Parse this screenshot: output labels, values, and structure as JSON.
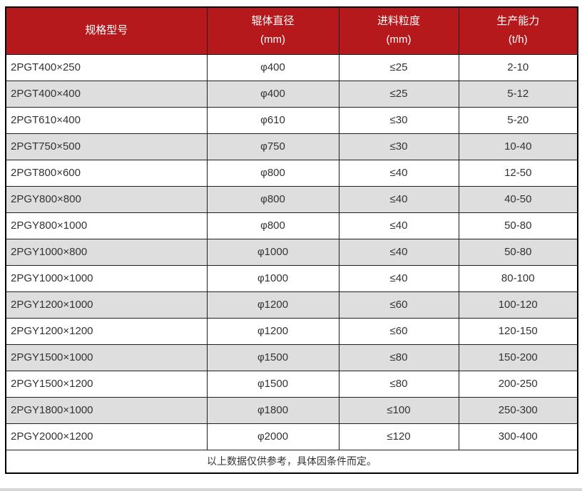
{
  "page": {
    "background": "#ffffff",
    "bottom_strip_color": "#d6d6d6"
  },
  "table": {
    "columns": [
      {
        "label": "规格型号",
        "unit": ""
      },
      {
        "label": "辊体直径",
        "unit": "(mm)"
      },
      {
        "label": "进料粒度",
        "unit": "(mm)"
      },
      {
        "label": "生产能力",
        "unit": "(t/h)"
      }
    ],
    "rows": [
      {
        "model": "2PGT400×250",
        "diameter": "φ400",
        "feed_size": "≤25",
        "capacity": "2-10"
      },
      {
        "model": "2PGT400×400",
        "diameter": "φ400",
        "feed_size": "≤25",
        "capacity": "5-12"
      },
      {
        "model": "2PGT610×400",
        "diameter": "φ610",
        "feed_size": "≤30",
        "capacity": "5-20"
      },
      {
        "model": "2PGT750×500",
        "diameter": "φ750",
        "feed_size": "≤30",
        "capacity": "10-40"
      },
      {
        "model": "2PGT800×600",
        "diameter": "φ800",
        "feed_size": "≤40",
        "capacity": "12-50"
      },
      {
        "model": "2PGY800×800",
        "diameter": "φ800",
        "feed_size": "≤40",
        "capacity": "40-50"
      },
      {
        "model": "2PGY800×1000",
        "diameter": "φ800",
        "feed_size": "≤40",
        "capacity": "50-80"
      },
      {
        "model": "2PGY1000×800",
        "diameter": "φ1000",
        "feed_size": "≤40",
        "capacity": "50-80"
      },
      {
        "model": "2PGY1000×1000",
        "diameter": "φ1000",
        "feed_size": "≤40",
        "capacity": "80-100"
      },
      {
        "model": "2PGY1200×1000",
        "diameter": "φ1200",
        "feed_size": "≤60",
        "capacity": "100-120"
      },
      {
        "model": "2PGY1200×1200",
        "diameter": "φ1200",
        "feed_size": "≤60",
        "capacity": "120-150"
      },
      {
        "model": "2PGY1500×1000",
        "diameter": "φ1500",
        "feed_size": "≤80",
        "capacity": "150-200"
      },
      {
        "model": "2PGY1500×1200",
        "diameter": "φ1500",
        "feed_size": "≤80",
        "capacity": "200-250"
      },
      {
        "model": "2PGY1800×1000",
        "diameter": "φ1800",
        "feed_size": "≤100",
        "capacity": "250-300"
      },
      {
        "model": "2PGY2000×1200",
        "diameter": "φ2000",
        "feed_size": "≤120",
        "capacity": "300-400"
      }
    ],
    "footer_note": "以上数据仅供参考，具体因条件而定。",
    "colors": {
      "header_bg": "#b5191c",
      "header_text": "#ffffff",
      "row_bg": "#ffffff",
      "row_alt_bg": "#dedede",
      "border": "#1f1f1f",
      "text": "#333333"
    }
  }
}
